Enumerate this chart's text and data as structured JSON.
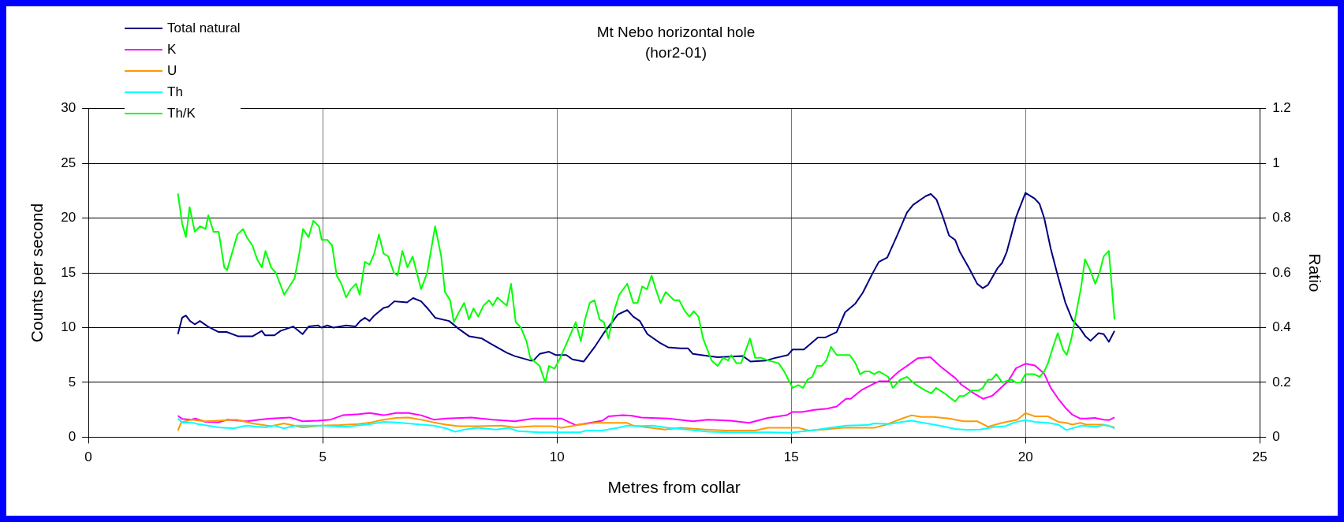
{
  "chart_data": {
    "type": "line",
    "title": "Mt Nebo horizontal hole",
    "subtitle": "(hor2-01)",
    "xlabel": "Metres from collar",
    "ylabel": "Counts per second",
    "y2label": "Ratio",
    "xlim": [
      0,
      25
    ],
    "xticks": [
      0,
      5,
      10,
      15,
      20,
      25
    ],
    "ylim": [
      0,
      30
    ],
    "yticks": [
      0,
      5,
      10,
      15,
      20,
      25,
      30
    ],
    "y2lim": [
      0,
      1.2
    ],
    "y2ticks": [
      0,
      0.2,
      0.4,
      0.6,
      0.8,
      1,
      1.2
    ],
    "grid": true,
    "legend": "top left",
    "line_style": "solid",
    "series": [
      {
        "name": "Total natural",
        "color": "#000080",
        "x": [
          1.91,
          2.0,
          2.08,
          2.17,
          2.27,
          2.38,
          2.55,
          2.78,
          2.95,
          3.2,
          3.5,
          3.7,
          3.77,
          3.97,
          4.1,
          4.37,
          4.57,
          4.7,
          4.9,
          4.97,
          5.1,
          5.23,
          5.5,
          5.7,
          5.8,
          5.9,
          6.0,
          6.1,
          6.3,
          6.4,
          6.53,
          6.8,
          6.93,
          7.1,
          7.23,
          7.4,
          7.7,
          7.9,
          8.13,
          8.4,
          8.6,
          8.93,
          9.1,
          9.43,
          9.5,
          9.63,
          9.83,
          9.97,
          10.2,
          10.33,
          10.57,
          10.8,
          11.0,
          11.3,
          11.5,
          11.63,
          11.77,
          11.93,
          12.2,
          12.37,
          12.63,
          12.8,
          12.9,
          13.23,
          13.43,
          13.97,
          14.13,
          14.47,
          14.63,
          14.93,
          15.03,
          15.27,
          15.57,
          15.73,
          15.97,
          16.15,
          16.37,
          16.53,
          16.73,
          16.87,
          17.05,
          17.27,
          17.47,
          17.6,
          17.87,
          17.98,
          18.1,
          18.23,
          18.37,
          18.5,
          18.6,
          18.8,
          18.97,
          19.09,
          19.2,
          19.4,
          19.5,
          19.6,
          19.7,
          19.8,
          20.0,
          20.19,
          20.3,
          20.4,
          20.54,
          20.68,
          20.85,
          21.0,
          21.17,
          21.28,
          21.39,
          21.56,
          21.67,
          21.78,
          21.9
        ],
        "values": [
          9.4,
          10.9,
          11.1,
          10.6,
          10.3,
          10.6,
          10.1,
          9.6,
          9.6,
          9.2,
          9.2,
          9.7,
          9.3,
          9.3,
          9.7,
          10.1,
          9.4,
          10.1,
          10.2,
          10.0,
          10.2,
          10.0,
          10.2,
          10.1,
          10.6,
          10.9,
          10.6,
          11.1,
          11.8,
          11.9,
          12.4,
          12.3,
          12.7,
          12.4,
          11.8,
          10.9,
          10.6,
          9.9,
          9.2,
          9.0,
          8.5,
          7.7,
          7.4,
          7.0,
          7.0,
          7.6,
          7.8,
          7.5,
          7.5,
          7.1,
          6.9,
          8.2,
          9.5,
          11.2,
          11.6,
          11.0,
          10.6,
          9.4,
          8.6,
          8.2,
          8.1,
          8.1,
          7.6,
          7.4,
          7.3,
          7.4,
          6.9,
          7.0,
          7.2,
          7.5,
          8.0,
          8.0,
          9.1,
          9.1,
          9.6,
          11.4,
          12.2,
          13.2,
          14.9,
          16.0,
          16.4,
          18.5,
          20.5,
          21.2,
          22.0,
          22.2,
          21.7,
          20.2,
          18.4,
          18.0,
          16.9,
          15.4,
          14.0,
          13.6,
          13.9,
          15.4,
          15.9,
          16.9,
          18.5,
          20.1,
          22.3,
          21.8,
          21.3,
          20.0,
          17.2,
          14.9,
          12.3,
          10.7,
          9.9,
          9.2,
          8.8,
          9.5,
          9.4,
          8.7,
          9.7
        ]
      },
      {
        "name": "K",
        "color": "#ff00ff",
        "x": [
          1.91,
          2.0,
          2.2,
          2.28,
          2.5,
          2.78,
          2.97,
          3.38,
          3.65,
          3.9,
          4.3,
          4.57,
          4.9,
          5.17,
          5.43,
          5.77,
          6.0,
          6.3,
          6.57,
          6.83,
          7.1,
          7.37,
          7.63,
          8.17,
          8.63,
          9.1,
          9.5,
          10.0,
          10.1,
          10.4,
          10.7,
          10.97,
          11.1,
          11.4,
          11.6,
          11.8,
          12.37,
          12.9,
          13.23,
          13.7,
          14.1,
          14.5,
          14.9,
          15.03,
          15.23,
          15.5,
          15.77,
          15.97,
          16.17,
          16.27,
          16.5,
          16.73,
          16.87,
          17.07,
          17.3,
          17.47,
          17.7,
          17.97,
          18.2,
          18.5,
          18.63,
          18.9,
          19.1,
          19.3,
          19.5,
          19.63,
          19.8,
          20.0,
          20.2,
          20.4,
          20.54,
          20.7,
          20.87,
          21.0,
          21.17,
          21.3,
          21.48,
          21.67,
          21.78,
          21.9
        ],
        "values": [
          1.96,
          1.66,
          1.6,
          1.7,
          1.4,
          1.36,
          1.6,
          1.45,
          1.6,
          1.7,
          1.8,
          1.45,
          1.5,
          1.6,
          2.0,
          2.1,
          2.2,
          2.0,
          2.2,
          2.2,
          2.0,
          1.6,
          1.7,
          1.8,
          1.6,
          1.45,
          1.7,
          1.7,
          1.7,
          1.1,
          1.3,
          1.5,
          1.9,
          2.0,
          1.95,
          1.8,
          1.7,
          1.45,
          1.6,
          1.5,
          1.3,
          1.75,
          2.0,
          2.3,
          2.3,
          2.5,
          2.6,
          2.8,
          3.5,
          3.5,
          4.3,
          4.8,
          5.1,
          5.1,
          6.0,
          6.5,
          7.2,
          7.3,
          6.4,
          5.4,
          4.8,
          4.0,
          3.5,
          3.8,
          4.6,
          5.1,
          6.3,
          6.7,
          6.55,
          5.8,
          4.5,
          3.5,
          2.6,
          2.05,
          1.7,
          1.7,
          1.75,
          1.6,
          1.55,
          1.8
        ]
      },
      {
        "name": "U",
        "color": "#ff9900",
        "x": [
          1.91,
          1.98,
          2.2,
          2.5,
          3.17,
          3.5,
          3.9,
          4.17,
          4.57,
          4.97,
          5.37,
          5.77,
          6.03,
          6.3,
          6.57,
          6.83,
          7.1,
          7.37,
          7.63,
          7.9,
          8.3,
          8.83,
          9.1,
          9.5,
          9.9,
          10.1,
          10.5,
          10.8,
          11.5,
          11.63,
          12.3,
          12.63,
          13.17,
          13.63,
          14.23,
          14.5,
          15.17,
          15.37,
          15.7,
          16.1,
          16.77,
          17.03,
          17.37,
          17.57,
          17.77,
          18.03,
          18.37,
          18.67,
          18.97,
          19.2,
          19.5,
          19.83,
          20.0,
          20.2,
          20.48,
          20.7,
          20.87,
          21.0,
          21.17,
          21.3,
          21.64,
          21.9
        ],
        "values": [
          0.6,
          1.35,
          1.6,
          1.45,
          1.6,
          1.25,
          1.0,
          1.25,
          0.9,
          1.05,
          1.1,
          1.2,
          1.35,
          1.6,
          1.75,
          1.8,
          1.6,
          1.35,
          1.15,
          1.0,
          1.0,
          1.05,
          0.9,
          1.0,
          1.0,
          0.85,
          1.15,
          1.3,
          1.3,
          1.05,
          0.7,
          0.85,
          0.7,
          0.6,
          0.6,
          0.85,
          0.85,
          0.6,
          0.7,
          0.85,
          0.85,
          1.15,
          1.7,
          2.0,
          1.85,
          1.85,
          1.7,
          1.45,
          1.45,
          0.95,
          1.3,
          1.6,
          2.2,
          1.9,
          1.9,
          1.4,
          1.3,
          1.15,
          1.3,
          1.15,
          1.15,
          0.9
        ]
      },
      {
        "name": "Th",
        "color": "#00ffff",
        "x": [
          1.91,
          2.0,
          2.2,
          2.33,
          2.78,
          3.1,
          3.37,
          3.77,
          3.97,
          4.17,
          4.43,
          4.97,
          5.5,
          6.03,
          6.3,
          6.57,
          6.83,
          7.1,
          7.37,
          7.63,
          7.83,
          8.03,
          8.3,
          8.7,
          8.97,
          9.17,
          9.63,
          10.0,
          10.5,
          10.63,
          10.97,
          11.3,
          11.5,
          11.7,
          12.03,
          12.37,
          12.77,
          13.23,
          13.7,
          14.1,
          14.5,
          14.97,
          15.17,
          15.43,
          15.83,
          16.17,
          16.63,
          16.77,
          17.1,
          17.37,
          17.57,
          17.97,
          18.23,
          18.5,
          18.77,
          19.03,
          19.37,
          19.57,
          19.77,
          20.0,
          20.2,
          20.48,
          20.7,
          20.87,
          21.2,
          21.5,
          21.67,
          21.78,
          21.9
        ],
        "values": [
          1.7,
          1.35,
          1.35,
          1.2,
          0.9,
          0.8,
          1.05,
          0.9,
          1.05,
          0.8,
          1.05,
          1.05,
          0.95,
          1.2,
          1.4,
          1.35,
          1.25,
          1.15,
          1.05,
          0.8,
          0.5,
          0.7,
          0.85,
          0.7,
          0.85,
          0.55,
          0.45,
          0.45,
          0.45,
          0.6,
          0.6,
          0.85,
          1.05,
          1.0,
          1.05,
          0.85,
          0.7,
          0.5,
          0.45,
          0.45,
          0.45,
          0.4,
          0.5,
          0.6,
          0.85,
          1.05,
          1.1,
          1.25,
          1.2,
          1.4,
          1.5,
          1.2,
          1.0,
          0.75,
          0.65,
          0.7,
          0.95,
          1.0,
          1.35,
          1.55,
          1.4,
          1.3,
          1.15,
          0.65,
          1.05,
          0.95,
          1.1,
          1.05,
          0.8
        ]
      },
      {
        "name": "Th/K",
        "color": "#00ff00",
        "axis": "y2",
        "x": [
          1.91,
          2.0,
          2.08,
          2.16,
          2.27,
          2.38,
          2.5,
          2.56,
          2.67,
          2.78,
          2.9,
          2.96,
          3.18,
          3.3,
          3.38,
          3.5,
          3.6,
          3.7,
          3.78,
          3.9,
          4.0,
          4.18,
          4.4,
          4.5,
          4.58,
          4.7,
          4.8,
          4.92,
          4.98,
          5.1,
          5.2,
          5.3,
          5.4,
          5.5,
          5.6,
          5.71,
          5.79,
          5.9,
          6.0,
          6.1,
          6.2,
          6.3,
          6.4,
          6.52,
          6.6,
          6.7,
          6.81,
          6.92,
          7.1,
          7.23,
          7.4,
          7.53,
          7.61,
          7.72,
          7.8,
          7.92,
          8.02,
          8.12,
          8.22,
          8.32,
          8.43,
          8.55,
          8.63,
          8.73,
          8.93,
          9.02,
          9.12,
          9.23,
          9.35,
          9.43,
          9.63,
          9.75,
          9.83,
          9.95,
          10.07,
          10.2,
          10.4,
          10.51,
          10.6,
          10.7,
          10.8,
          10.91,
          11.0,
          11.1,
          11.22,
          11.33,
          11.5,
          11.63,
          11.72,
          11.82,
          11.92,
          12.02,
          12.11,
          12.21,
          12.32,
          12.5,
          12.61,
          12.73,
          12.83,
          12.92,
          13.02,
          13.12,
          13.3,
          13.43,
          13.55,
          13.65,
          13.72,
          13.83,
          13.93,
          14.12,
          14.23,
          14.35,
          14.51,
          14.73,
          14.85,
          15.03,
          15.15,
          15.25,
          15.35,
          15.45,
          15.55,
          15.65,
          15.75,
          15.85,
          15.97,
          16.13,
          16.25,
          16.37,
          16.47,
          16.57,
          16.67,
          16.77,
          16.87,
          16.98,
          17.07,
          17.17,
          17.33,
          17.47,
          17.67,
          17.87,
          17.99,
          18.09,
          18.27,
          18.5,
          18.59,
          18.69,
          18.85,
          19.0,
          19.09,
          19.2,
          19.28,
          19.38,
          19.5,
          19.7,
          19.79,
          19.9,
          20.0,
          20.19,
          20.3,
          20.4,
          20.48,
          20.59,
          20.69,
          20.8,
          20.88,
          20.98,
          21.09,
          21.19,
          21.27,
          21.38,
          21.49,
          21.58,
          21.67,
          21.78,
          21.9
        ],
        "values": [
          0.89,
          0.78,
          0.73,
          0.84,
          0.75,
          0.77,
          0.76,
          0.81,
          0.75,
          0.75,
          0.62,
          0.61,
          0.74,
          0.76,
          0.73,
          0.7,
          0.65,
          0.62,
          0.68,
          0.62,
          0.6,
          0.52,
          0.58,
          0.67,
          0.76,
          0.73,
          0.79,
          0.77,
          0.72,
          0.72,
          0.7,
          0.59,
          0.56,
          0.51,
          0.54,
          0.56,
          0.52,
          0.64,
          0.63,
          0.67,
          0.74,
          0.67,
          0.66,
          0.6,
          0.59,
          0.68,
          0.62,
          0.66,
          0.54,
          0.6,
          0.77,
          0.66,
          0.53,
          0.5,
          0.42,
          0.46,
          0.49,
          0.43,
          0.47,
          0.44,
          0.48,
          0.5,
          0.48,
          0.51,
          0.48,
          0.56,
          0.42,
          0.4,
          0.35,
          0.29,
          0.26,
          0.2,
          0.26,
          0.25,
          0.29,
          0.34,
          0.42,
          0.35,
          0.43,
          0.49,
          0.5,
          0.43,
          0.42,
          0.36,
          0.46,
          0.52,
          0.56,
          0.49,
          0.49,
          0.55,
          0.54,
          0.59,
          0.54,
          0.49,
          0.53,
          0.5,
          0.5,
          0.46,
          0.44,
          0.46,
          0.44,
          0.36,
          0.28,
          0.26,
          0.29,
          0.28,
          0.3,
          0.27,
          0.27,
          0.36,
          0.29,
          0.29,
          0.28,
          0.27,
          0.24,
          0.18,
          0.19,
          0.18,
          0.21,
          0.22,
          0.26,
          0.26,
          0.28,
          0.33,
          0.3,
          0.3,
          0.3,
          0.27,
          0.23,
          0.24,
          0.24,
          0.23,
          0.24,
          0.23,
          0.22,
          0.18,
          0.21,
          0.22,
          0.19,
          0.17,
          0.16,
          0.18,
          0.16,
          0.13,
          0.15,
          0.15,
          0.17,
          0.17,
          0.18,
          0.21,
          0.21,
          0.23,
          0.2,
          0.21,
          0.2,
          0.2,
          0.23,
          0.23,
          0.22,
          0.24,
          0.27,
          0.33,
          0.38,
          0.32,
          0.3,
          0.36,
          0.46,
          0.55,
          0.65,
          0.61,
          0.56,
          0.6,
          0.66,
          0.68,
          0.43
        ]
      }
    ]
  }
}
